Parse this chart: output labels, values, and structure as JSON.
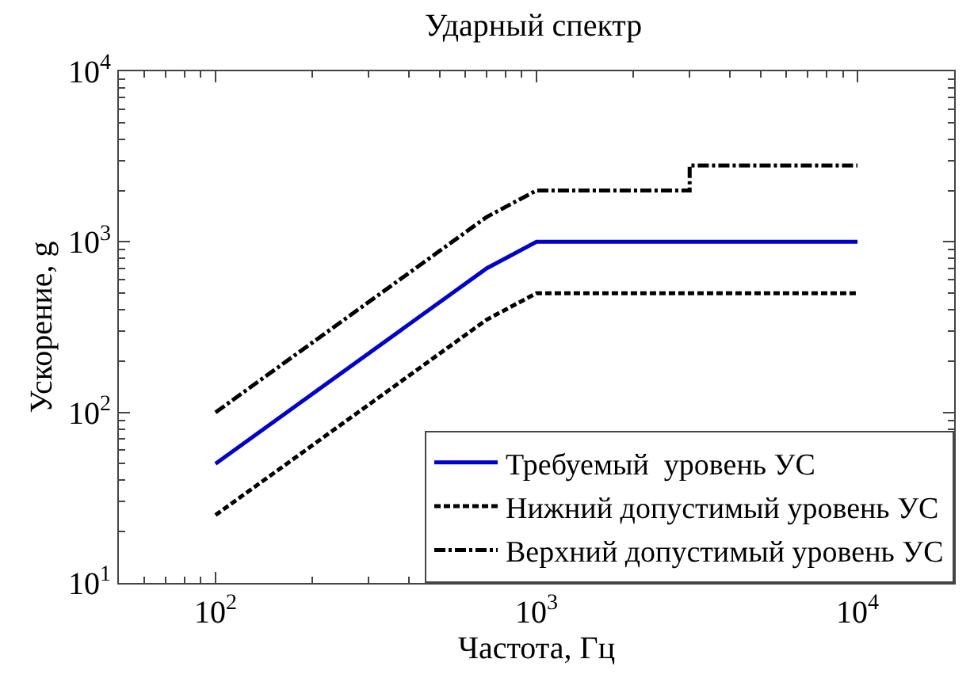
{
  "chart_data": {
    "type": "line",
    "title": "Ударный спектр",
    "xlabel": "Частота, Гц",
    "ylabel": "Ускорение, g",
    "log": "xy",
    "grid": false,
    "legend": "bottom right",
    "marker": "none",
    "xlim": [
      50,
      20000
    ],
    "ylim": [
      10,
      10000
    ],
    "xticks": [
      {
        "value": 100,
        "label": "10$^{2}$"
      },
      {
        "value": 1000,
        "label": "10$^{3}$"
      },
      {
        "value": 10000,
        "label": "10$^{4}$"
      }
    ],
    "yticks": [
      {
        "value": 10,
        "label": "10$^{1}$"
      },
      {
        "value": 100,
        "label": "10$^{2}$"
      },
      {
        "value": 1000,
        "label": "10$^{3}$"
      },
      {
        "value": 10000,
        "label": "10$^{4}$"
      }
    ],
    "series": [
      {
        "name": "Требуемый  уровень УС",
        "color": "#0000cc",
        "line_style": "solid",
        "x": [
          100,
          700,
          1000,
          10000
        ],
        "values": [
          50,
          700,
          1000,
          1000
        ]
      },
      {
        "name": "Нижний допустимый уровень УС",
        "color": "#000000",
        "line_style": "dashed",
        "x": [
          100,
          700,
          1000,
          10000
        ],
        "values": [
          25,
          350,
          500,
          500
        ]
      },
      {
        "name": "Верхний допустимый уровень УС",
        "color": "#000000",
        "line_style": "dashdot",
        "x": [
          100,
          700,
          1000,
          3000,
          3000,
          10000
        ],
        "values": [
          100,
          1400,
          2000,
          2000,
          2800,
          2800
        ]
      }
    ]
  }
}
